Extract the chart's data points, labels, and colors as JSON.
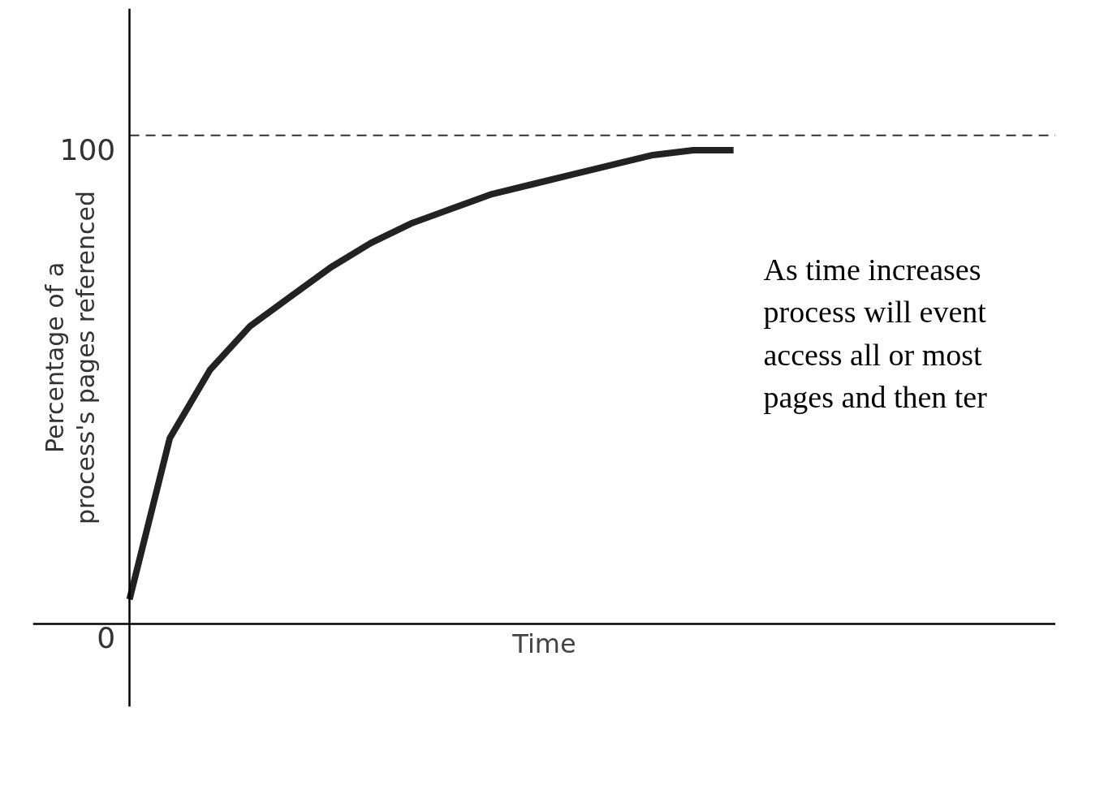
{
  "chart_data": {
    "type": "line",
    "xlabel": "Time",
    "ylabel": "Percentage of a\nprocess's pages referenced",
    "categories": [
      null,
      null,
      null,
      null,
      null,
      null,
      null,
      null,
      null,
      null,
      null,
      null,
      null,
      null,
      null,
      null
    ],
    "series": [
      {
        "color": "#222222",
        "values": [
          5,
          38,
          52,
          61,
          67,
          73,
          78,
          82,
          85,
          88,
          90,
          92,
          94,
          96,
          97,
          97
        ]
      }
    ],
    "ylim": [
      -17,
      126
    ],
    "yticks": [
      0,
      100
    ],
    "grid": false,
    "marker": "none",
    "line_style": "solid",
    "tick_labels": "y",
    "ref_lines": [
      {
        "axis": "y",
        "value": 100,
        "line_style": "dashed",
        "color": "#333333"
      }
    ],
    "annotations": [
      "As time increases\nprocess will event\naccess all or most\npages and then ter"
    ]
  }
}
